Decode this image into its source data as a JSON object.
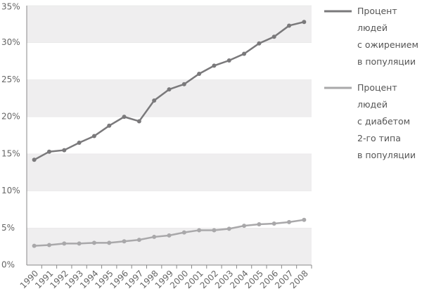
{
  "chart_data": {
    "type": "line",
    "categories": [
      "1990",
      "1991",
      "1992",
      "1993",
      "1994",
      "1995",
      "1996",
      "1997",
      "1998",
      "1999",
      "2000",
      "2001",
      "2002",
      "2003",
      "2004",
      "2005",
      "2006",
      "2007",
      "2008"
    ],
    "series": [
      {
        "name": "Процент\nлюдей\nс ожирением\nв популяции",
        "color": "#7a797b",
        "values": [
          14.2,
          15.3,
          15.5,
          16.5,
          17.4,
          18.8,
          20.0,
          19.4,
          22.2,
          23.7,
          24.4,
          25.8,
          26.9,
          27.6,
          28.5,
          29.9,
          30.8,
          32.3,
          32.8
        ]
      },
      {
        "name": "Процент\nлюдей\nс диабетом\n2-го типа\nв популяции",
        "color": "#a9a8aa",
        "values": [
          2.6,
          2.7,
          2.9,
          2.9,
          3.0,
          3.0,
          3.2,
          3.4,
          3.8,
          4.0,
          4.4,
          4.7,
          4.7,
          4.9,
          5.3,
          5.5,
          5.6,
          5.8,
          6.1
        ]
      }
    ],
    "ylim": [
      0,
      35
    ],
    "yticks": [
      {
        "value": 0,
        "label": "0%"
      },
      {
        "value": 5,
        "label": "5%"
      },
      {
        "value": 10,
        "label": "10%"
      },
      {
        "value": 15,
        "label": "15%"
      },
      {
        "value": 20,
        "label": "20%"
      },
      {
        "value": 25,
        "label": "25%"
      },
      {
        "value": 30,
        "label": "30%"
      },
      {
        "value": 35,
        "label": "35%"
      }
    ],
    "grid": "bands"
  }
}
